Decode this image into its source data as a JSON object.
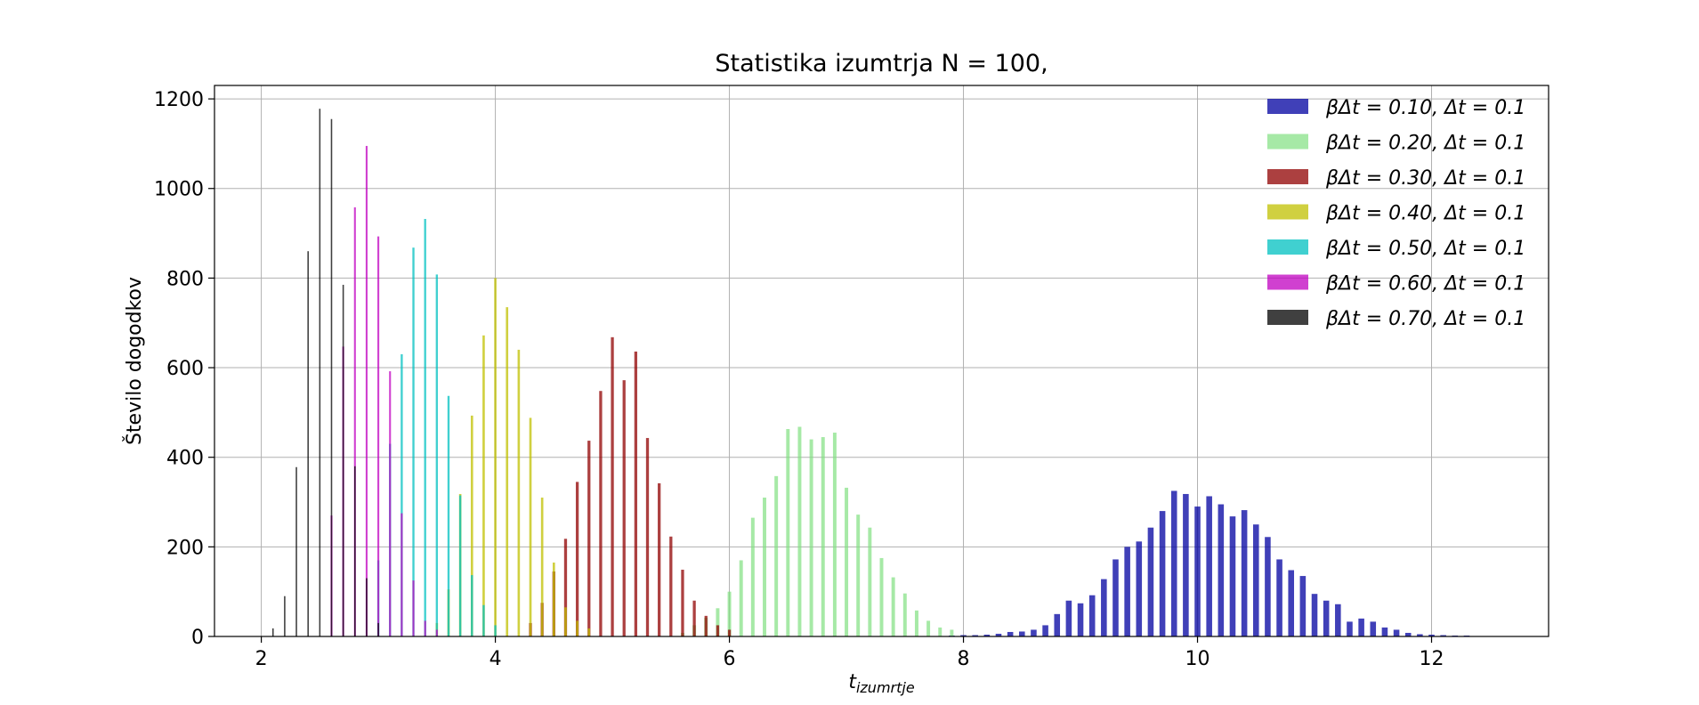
{
  "chart_data": {
    "type": "bar",
    "title": "Statistika izumtrja N = 100,",
    "xlabel_main": "t",
    "xlabel_sub": "izumrtje",
    "ylabel": "Število dogodkov",
    "xlim": [
      1.6,
      13.0
    ],
    "ylim": [
      0,
      1230
    ],
    "xticks": [
      2,
      4,
      6,
      8,
      10,
      12
    ],
    "yticks": [
      0,
      200,
      400,
      600,
      800,
      1000,
      1200
    ],
    "grid": true,
    "legend_position": "top-right",
    "series": [
      {
        "name": "βΔt = 0.10, Δt = 0.1",
        "color": "#0000a0",
        "opacity": 0.75,
        "bar_width": 0.05,
        "x": [
          7.8,
          7.9,
          8.0,
          8.1,
          8.2,
          8.3,
          8.4,
          8.5,
          8.6,
          8.7,
          8.8,
          8.9,
          9.0,
          9.1,
          9.2,
          9.3,
          9.4,
          9.5,
          9.6,
          9.7,
          9.8,
          9.9,
          10.0,
          10.1,
          10.2,
          10.3,
          10.4,
          10.5,
          10.6,
          10.7,
          10.8,
          10.9,
          11.0,
          11.1,
          11.2,
          11.3,
          11.4,
          11.5,
          11.6,
          11.7,
          11.8,
          11.9,
          12.0,
          12.1,
          12.2,
          12.3,
          12.4,
          12.5
        ],
        "values": [
          1,
          2,
          3,
          3,
          4,
          6,
          10,
          11,
          15,
          25,
          50,
          80,
          74,
          92,
          128,
          172,
          200,
          212,
          243,
          280,
          325,
          318,
          290,
          313,
          295,
          268,
          282,
          250,
          222,
          172,
          148,
          135,
          95,
          80,
          72,
          33,
          40,
          33,
          20,
          15,
          8,
          5,
          4,
          3,
          2,
          2,
          1,
          1
        ]
      },
      {
        "name": "βΔt = 0.20, Δt = 0.1",
        "color": "#80e080",
        "opacity": 0.7,
        "bar_width": 0.03,
        "x": [
          5.6,
          5.7,
          5.8,
          5.9,
          6.0,
          6.1,
          6.2,
          6.3,
          6.4,
          6.5,
          6.6,
          6.7,
          6.8,
          6.9,
          7.0,
          7.1,
          7.2,
          7.3,
          7.4,
          7.5,
          7.6,
          7.7,
          7.8,
          7.9
        ],
        "values": [
          8,
          25,
          42,
          63,
          100,
          170,
          265,
          310,
          358,
          463,
          468,
          440,
          445,
          455,
          332,
          272,
          243,
          175,
          132,
          96,
          58,
          35,
          20,
          15
        ]
      },
      {
        "name": "βΔt = 0.30, Δt = 0.1",
        "color": "#900000",
        "opacity": 0.75,
        "bar_width": 0.025,
        "x": [
          4.3,
          4.4,
          4.5,
          4.6,
          4.7,
          4.8,
          4.9,
          5.0,
          5.1,
          5.2,
          5.3,
          5.4,
          5.5,
          5.6,
          5.7,
          5.8,
          5.9,
          6.0
        ],
        "values": [
          30,
          75,
          145,
          218,
          345,
          437,
          548,
          668,
          572,
          636,
          443,
          342,
          223,
          149,
          80,
          46,
          25,
          15
        ]
      },
      {
        "name": "βΔt = 0.40, Δt = 0.1",
        "color": "#c0c000",
        "opacity": 0.75,
        "bar_width": 0.02,
        "x": [
          3.5,
          3.6,
          3.7,
          3.8,
          3.9,
          4.0,
          4.1,
          4.2,
          4.3,
          4.4,
          4.5,
          4.6,
          4.7,
          4.8
        ],
        "values": [
          30,
          105,
          318,
          493,
          672,
          800,
          735,
          640,
          488,
          310,
          165,
          65,
          35,
          18
        ]
      },
      {
        "name": "βΔt = 0.50, Δt = 0.1",
        "color": "#00c0c0",
        "opacity": 0.75,
        "bar_width": 0.018,
        "x": [
          3.0,
          3.1,
          3.2,
          3.3,
          3.4,
          3.5,
          3.6,
          3.7,
          3.8,
          3.9,
          4.0
        ],
        "values": [
          170,
          430,
          630,
          868,
          932,
          808,
          537,
          315,
          137,
          70,
          25
        ]
      },
      {
        "name": "βΔt = 0.60, Δt = 0.1",
        "color": "#c000c0",
        "opacity": 0.75,
        "bar_width": 0.016,
        "x": [
          2.6,
          2.7,
          2.8,
          2.9,
          3.0,
          3.1,
          3.2,
          3.3,
          3.4,
          3.5
        ],
        "values": [
          270,
          647,
          958,
          1095,
          893,
          592,
          275,
          125,
          35,
          15
        ]
      },
      {
        "name": "βΔt = 0.70, Δt = 0.1",
        "color": "#000000",
        "opacity": 0.75,
        "bar_width": 0.012,
        "x": [
          2.1,
          2.2,
          2.3,
          2.4,
          2.5,
          2.6,
          2.7,
          2.8,
          2.9,
          3.0
        ],
        "values": [
          18,
          90,
          378,
          860,
          1178,
          1155,
          785,
          380,
          130,
          30
        ]
      }
    ]
  }
}
